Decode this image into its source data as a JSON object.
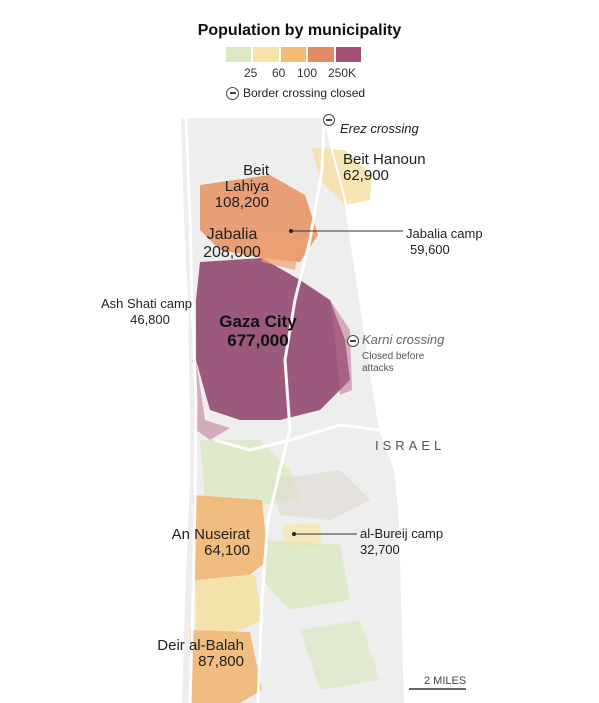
{
  "legend": {
    "title": "Population by municipality",
    "ticks": [
      "25",
      "60",
      "100",
      "250K"
    ],
    "colors": [
      "#dbe8c2",
      "#f7e3a8",
      "#f3bb73",
      "#e58963",
      "#a25076"
    ],
    "closed_label": "Border crossing closed"
  },
  "places": {
    "beit_lahiya": {
      "name": "Beit Lahiya",
      "pop": "108,200"
    },
    "beit_hanoun": {
      "name": "Beit Hanoun",
      "pop": "62,900"
    },
    "jabalia": {
      "name": "Jabalia",
      "pop": "208,000"
    },
    "jabalia_camp": {
      "name": "Jabalia camp",
      "pop": "59,600"
    },
    "ash_shati": {
      "name": "Ash Shati camp",
      "pop": "46,800"
    },
    "gaza_city": {
      "name": "Gaza City",
      "pop": "677,000"
    },
    "an_nuseirat": {
      "name": "An Nuseirat",
      "pop": "64,100"
    },
    "bureij": {
      "name": "al-Bureij camp",
      "pop": "32,700"
    },
    "deir": {
      "name": "Deir al-Balah",
      "pop": "87,800"
    }
  },
  "crossings": {
    "erez": {
      "name": "Erez crossing"
    },
    "karni": {
      "name": "Karni crossing",
      "note_line1": "Closed before",
      "note_line2": "attacks"
    }
  },
  "map": {
    "region_label": "ISRAEL",
    "scale_label": "2 MILES"
  },
  "colors": {
    "land": "#efefef",
    "road": "#ffffff",
    "dark_purple": "#8c3f68",
    "mid_orange": "#e8915f",
    "light_orange": "#f1b36c",
    "pale_yellow": "#f5dfa0",
    "pale_green": "#d8e8bc"
  }
}
